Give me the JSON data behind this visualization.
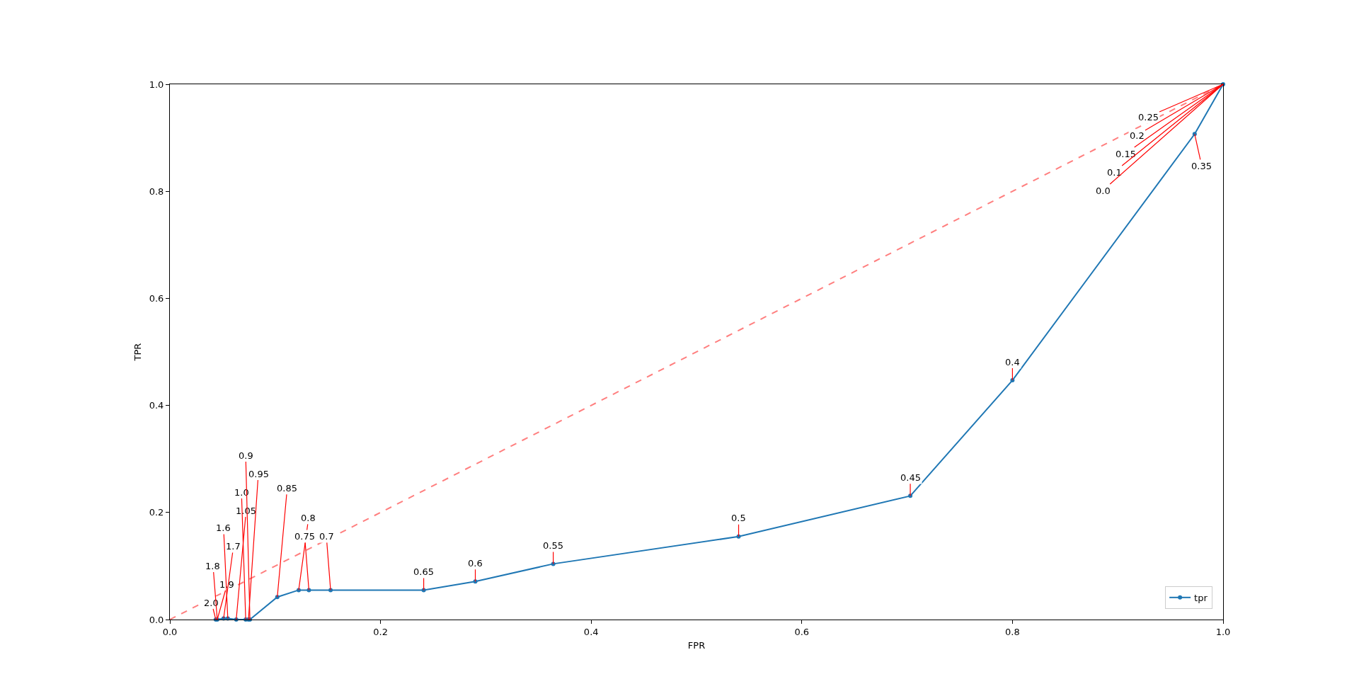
{
  "chart_data": {
    "type": "line",
    "xlabel": "FPR",
    "ylabel": "TPR",
    "xlim": [
      0,
      1
    ],
    "ylim": [
      0,
      1
    ],
    "xticks": [
      {
        "value": 0,
        "label": "0.0"
      },
      {
        "value": 0.2,
        "label": "0.2"
      },
      {
        "value": 0.4,
        "label": "0.4"
      },
      {
        "value": 0.6,
        "label": "0.6"
      },
      {
        "value": 0.8,
        "label": "0.8"
      },
      {
        "value": 1,
        "label": "1.0"
      }
    ],
    "yticks": [
      {
        "value": 0,
        "label": "0.0"
      },
      {
        "value": 0.2,
        "label": "0.2"
      },
      {
        "value": 0.4,
        "label": "0.4"
      },
      {
        "value": 0.6,
        "label": "0.6"
      },
      {
        "value": 0.8,
        "label": "0.8"
      },
      {
        "value": 1,
        "label": "1.0"
      }
    ],
    "grid": false,
    "legend": "bottom right",
    "series": [
      {
        "name": "tpr",
        "color": "#1f77b4",
        "marker": "circle",
        "line_style": "solid",
        "x": [
          0.0436,
          0.045,
          0.051,
          0.055,
          0.063,
          0.072,
          0.0746,
          0.076,
          0.102,
          0.1223,
          0.132,
          0.1526,
          0.241,
          0.29,
          0.364,
          0.54,
          0.703,
          0.8,
          0.973,
          1
        ],
        "values": [
          0,
          0,
          0.002,
          0.002,
          0,
          0,
          0,
          0,
          0.042,
          0.055,
          0.055,
          0.055,
          0.055,
          0.071,
          0.104,
          0.155,
          0.231,
          0.447,
          0.907,
          1
        ]
      },
      {
        "type": "line",
        "color": "#ff7f7f",
        "marker": "none",
        "line_style": "dashed",
        "x": [
          0,
          1
        ],
        "values": [
          0,
          1
        ]
      }
    ],
    "annotations": [
      {
        "text": "2.0",
        "x": 0.0436,
        "y": 0
      },
      {
        "text": "1.9",
        "x": 0.045,
        "y": 0
      },
      {
        "text": "1.8",
        "x": 0.045,
        "y": 0
      },
      {
        "text": "1.7",
        "x": 0.051,
        "y": 0.002
      },
      {
        "text": "1.6",
        "x": 0.055,
        "y": 0.002
      },
      {
        "text": "1.05",
        "x": 0.063,
        "y": 0
      },
      {
        "text": "1.0",
        "x": 0.072,
        "y": 0
      },
      {
        "text": "0.95",
        "x": 0.0746,
        "y": 0
      },
      {
        "text": "0.9",
        "x": 0.076,
        "y": 0
      },
      {
        "text": "0.85",
        "x": 0.102,
        "y": 0.042
      },
      {
        "text": "0.8",
        "x": 0.1223,
        "y": 0.055
      },
      {
        "text": "0.75",
        "x": 0.132,
        "y": 0.055
      },
      {
        "text": "0.7",
        "x": 0.1526,
        "y": 0.055
      },
      {
        "text": "0.65",
        "x": 0.241,
        "y": 0.055
      },
      {
        "text": "0.6",
        "x": 0.29,
        "y": 0.071
      },
      {
        "text": "0.55",
        "x": 0.364,
        "y": 0.104
      },
      {
        "text": "0.5",
        "x": 0.54,
        "y": 0.155
      },
      {
        "text": "0.45",
        "x": 0.703,
        "y": 0.231
      },
      {
        "text": "0.4",
        "x": 0.8,
        "y": 0.447
      },
      {
        "text": "0.35",
        "x": 0.973,
        "y": 0.907
      },
      {
        "text": "0.25",
        "x": 1,
        "y": 1
      },
      {
        "text": "0.2",
        "x": 1,
        "y": 1
      },
      {
        "text": "0.15",
        "x": 1,
        "y": 1
      },
      {
        "text": "0.1",
        "x": 1,
        "y": 1
      },
      {
        "text": "0.0",
        "x": 1,
        "y": 1
      }
    ]
  }
}
